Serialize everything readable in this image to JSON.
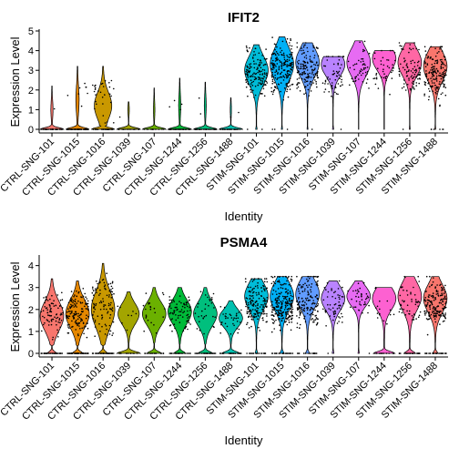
{
  "colors": [
    "#F8766D",
    "#E58700",
    "#C99800",
    "#A3A500",
    "#6BB100",
    "#00BA38",
    "#00BF7D",
    "#00C0AF",
    "#00BCD8",
    "#00B0F6",
    "#619CFF",
    "#B983FF",
    "#E76BF3",
    "#FD61D1",
    "#FF67A4"
  ],
  "chart_data": [
    {
      "type": "violin",
      "title": "IFIT2",
      "xlabel": "Identity",
      "ylabel": "Expression Level",
      "ylim": [
        0,
        5
      ],
      "yticks": [
        0,
        1,
        2,
        3,
        4,
        5
      ],
      "categories": [
        "CTRL-SNG-101",
        "CTRL-SNG-1015",
        "CTRL-SNG-1016",
        "CTRL-SNG-1039",
        "CTRL-SNG-107",
        "CTRL-SNG-1244",
        "CTRL-SNG-1256",
        "CTRL-SNG-1488",
        "STIM-SNG-101",
        "STIM-SNG-1015",
        "STIM-SNG-1016",
        "STIM-SNG-1039",
        "STIM-SNG-107",
        "STIM-SNG-1244",
        "STIM-SNG-1256",
        "STIM-SNG-1488"
      ],
      "max": [
        2.2,
        3.2,
        3.2,
        1.4,
        2.1,
        2.6,
        2.4,
        1.6,
        4.3,
        4.7,
        4.4,
        3.7,
        4.5,
        4.0,
        4.4,
        4.2
      ],
      "zero_mass": [
        0.92,
        0.88,
        0.55,
        0.95,
        0.95,
        0.92,
        0.93,
        0.96,
        0.04,
        0.03,
        0.02,
        0.03,
        0.0,
        0.0,
        0.02,
        0.02
      ],
      "nonzero_min": [
        0.3,
        0.3,
        0.3,
        0.3,
        0.3,
        0.3,
        0.3,
        0.3,
        1.2,
        1.2,
        1.3,
        1.2,
        1.5,
        1.5,
        1.5,
        1.0
      ],
      "mode": [
        1.0,
        1.5,
        1.2,
        1.0,
        1.0,
        1.2,
        1.2,
        1.0,
        3.0,
        3.3,
        3.4,
        3.3,
        3.4,
        3.6,
        3.4,
        3.2
      ],
      "n_cells": [
        40,
        80,
        70,
        20,
        12,
        45,
        40,
        30,
        150,
        200,
        150,
        60,
        50,
        40,
        90,
        180
      ]
    },
    {
      "type": "violin",
      "title": "PSMA4",
      "xlabel": "Identity",
      "ylabel": "Expression Level",
      "ylim": [
        0,
        4.4
      ],
      "yticks": [
        0,
        1,
        2,
        3,
        4
      ],
      "categories": [
        "CTRL-SNG-101",
        "CTRL-SNG-1015",
        "CTRL-SNG-1016",
        "CTRL-SNG-1039",
        "CTRL-SNG-107",
        "CTRL-SNG-1244",
        "CTRL-SNG-1256",
        "CTRL-SNG-1488",
        "STIM-SNG-101",
        "STIM-SNG-1015",
        "STIM-SNG-1016",
        "STIM-SNG-1039",
        "STIM-SNG-107",
        "STIM-SNG-1244",
        "STIM-SNG-1256",
        "STIM-SNG-1488"
      ],
      "max": [
        3.4,
        3.3,
        4.1,
        2.8,
        3.0,
        3.0,
        3.0,
        2.4,
        3.4,
        3.5,
        3.5,
        3.3,
        3.3,
        3.0,
        3.5,
        3.5
      ],
      "zero_mass": [
        0.25,
        0.28,
        0.25,
        0.5,
        0.35,
        0.3,
        0.35,
        0.4,
        0.08,
        0.12,
        0.12,
        0.05,
        0.03,
        0.45,
        0.3,
        0.15
      ],
      "nonzero_min": [
        0.6,
        0.6,
        0.6,
        0.8,
        0.8,
        0.7,
        0.7,
        0.7,
        0.8,
        0.8,
        0.8,
        1.0,
        1.4,
        0.8,
        0.8,
        0.8
      ],
      "mode": [
        1.7,
        1.8,
        2.0,
        1.8,
        1.8,
        1.9,
        1.8,
        1.6,
        2.6,
        2.6,
        2.7,
        2.5,
        2.6,
        2.5,
        2.6,
        2.5
      ],
      "n_cells": [
        120,
        200,
        150,
        20,
        40,
        100,
        60,
        60,
        180,
        250,
        180,
        60,
        40,
        30,
        80,
        200
      ]
    }
  ]
}
